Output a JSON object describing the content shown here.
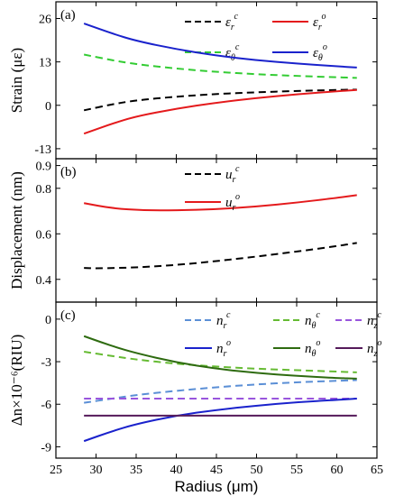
{
  "chart_data": [
    {
      "type": "line",
      "panel_label": "(a)",
      "ylabel": "Strain (με)",
      "ylim": [
        -16,
        31
      ],
      "yticks": [
        -13,
        0,
        13,
        26
      ],
      "xlim": [
        25,
        65
      ],
      "series": [
        {
          "name_main": "ε",
          "name_sub": "r",
          "name_sup": "c",
          "color": "#000000",
          "dashed": true,
          "x": [
            28.5,
            32,
            35,
            40,
            45,
            50,
            55,
            60,
            62.5
          ],
          "y": [
            -1.5,
            0.3,
            1.5,
            2.6,
            3.4,
            3.9,
            4.3,
            4.6,
            4.7
          ]
        },
        {
          "name_main": "ε",
          "name_sub": "r",
          "name_sup": "o",
          "color": "#e41a1c",
          "dashed": false,
          "x": [
            28.5,
            32,
            35,
            40,
            45,
            50,
            55,
            60,
            62.5
          ],
          "y": [
            -8.5,
            -5.5,
            -3.3,
            -1.0,
            0.8,
            2.2,
            3.3,
            4.2,
            4.6
          ]
        },
        {
          "name_main": "ε",
          "name_sub": "θ",
          "name_sup": "c",
          "color": "#33cc33",
          "dashed": true,
          "x": [
            28.5,
            32,
            35,
            40,
            45,
            50,
            55,
            60,
            62.5
          ],
          "y": [
            15.2,
            13.5,
            12.3,
            11.0,
            10.0,
            9.3,
            8.8,
            8.4,
            8.2
          ]
        },
        {
          "name_main": "ε",
          "name_sub": "θ",
          "name_sup": "o",
          "color": "#1a22cc",
          "dashed": false,
          "x": [
            28.5,
            32,
            35,
            40,
            45,
            50,
            55,
            60,
            62.5
          ],
          "y": [
            24.5,
            21.5,
            19.3,
            16.8,
            14.9,
            13.5,
            12.5,
            11.7,
            11.3
          ]
        }
      ]
    },
    {
      "type": "line",
      "panel_label": "(b)",
      "ylabel": "Displacement (nm)",
      "ylim": [
        0.3,
        0.93
      ],
      "yticks": [
        0.4,
        0.6,
        0.8,
        0.9
      ],
      "ytick_labels": [
        "0.4",
        "0.6",
        "0.8",
        "0.9"
      ],
      "xlim": [
        25,
        65
      ],
      "series": [
        {
          "name_main": "u",
          "name_sub": "r",
          "name_sup": "c",
          "color": "#000000",
          "dashed": true,
          "x": [
            28.5,
            30,
            35,
            40,
            45,
            50,
            55,
            60,
            62.5
          ],
          "y": [
            0.45,
            0.448,
            0.452,
            0.463,
            0.48,
            0.5,
            0.522,
            0.546,
            0.56
          ]
        },
        {
          "name_main": "u",
          "name_sub": "r",
          "name_sup": "o",
          "color": "#e41a1c",
          "dashed": false,
          "x": [
            28.5,
            32,
            36,
            40,
            45,
            50,
            55,
            60,
            62.5
          ],
          "y": [
            0.735,
            0.712,
            0.703,
            0.703,
            0.708,
            0.72,
            0.737,
            0.758,
            0.77
          ]
        }
      ]
    },
    {
      "type": "line",
      "panel_label": "(c)",
      "ylabel": "Δn×10⁻⁶(RIU)",
      "ylim": [
        -9.8,
        1.2
      ],
      "yticks": [
        -9,
        -6,
        -3,
        0
      ],
      "xlim": [
        25,
        65
      ],
      "xticks": [
        25,
        30,
        35,
        40,
        45,
        50,
        55,
        60,
        65
      ],
      "xlabel": "Radius (μm)",
      "series": [
        {
          "name_main": "n",
          "name_sub": "r",
          "name_sup": "c",
          "color": "#5b8fd6",
          "dashed": true,
          "x": [
            28.5,
            32,
            35,
            40,
            45,
            50,
            55,
            60,
            62.5
          ],
          "y": [
            -5.9,
            -5.6,
            -5.35,
            -5.05,
            -4.8,
            -4.6,
            -4.45,
            -4.35,
            -4.3
          ]
        },
        {
          "name_main": "n",
          "name_sub": "θ",
          "name_sup": "c",
          "color": "#66bb33",
          "dashed": true,
          "x": [
            28.5,
            32,
            35,
            40,
            45,
            50,
            55,
            60,
            62.5
          ],
          "y": [
            -2.3,
            -2.6,
            -2.85,
            -3.15,
            -3.35,
            -3.5,
            -3.6,
            -3.7,
            -3.75
          ]
        },
        {
          "name_main": "n",
          "name_sub": "z",
          "name_sup": "c",
          "color": "#9955dd",
          "dashed": true,
          "x": [
            28.5,
            62.5
          ],
          "y": [
            -5.6,
            -5.6
          ]
        },
        {
          "name_main": "n",
          "name_sub": "r",
          "name_sup": "o",
          "color": "#1a22cc",
          "dashed": false,
          "x": [
            28.5,
            32,
            35,
            40,
            45,
            50,
            55,
            60,
            62.5
          ],
          "y": [
            -8.6,
            -7.9,
            -7.4,
            -6.8,
            -6.4,
            -6.1,
            -5.85,
            -5.7,
            -5.6
          ]
        },
        {
          "name_main": "n",
          "name_sub": "θ",
          "name_sup": "o",
          "color": "#2e6b10",
          "dashed": false,
          "x": [
            28.5,
            32,
            35,
            40,
            45,
            50,
            55,
            60,
            62.5
          ],
          "y": [
            -1.2,
            -1.9,
            -2.4,
            -3.05,
            -3.5,
            -3.8,
            -4.0,
            -4.15,
            -4.2
          ]
        },
        {
          "name_main": "n",
          "name_sub": "z",
          "name_sup": "o",
          "color": "#551a5a",
          "dashed": false,
          "x": [
            28.5,
            62.5
          ],
          "y": [
            -6.8,
            -6.8
          ]
        }
      ]
    }
  ]
}
